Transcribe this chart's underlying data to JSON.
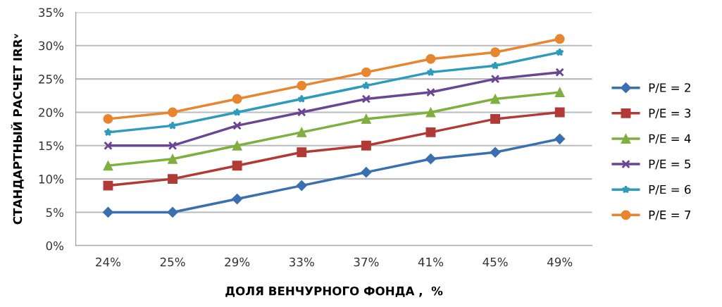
{
  "chart_data": {
    "type": "line",
    "xlabel": "ДОЛЯ ВЕНЧУРНОГО ФОНДА ,  %",
    "ylabel": "СТАНДАРТНЫЙ РАСЧЕТ IRRᵛ",
    "categories": [
      "24%",
      "25%",
      "29%",
      "33%",
      "37%",
      "41%",
      "45%",
      "49%"
    ],
    "series": [
      {
        "name": "P/E = 2",
        "color": "#3a6fb0",
        "marker": "diamond",
        "values": [
          5,
          5,
          7,
          9,
          11,
          13,
          14,
          16
        ]
      },
      {
        "name": "P/E = 3",
        "color": "#b23a36",
        "marker": "square",
        "values": [
          9,
          10,
          12,
          14,
          15,
          17,
          19,
          20
        ]
      },
      {
        "name": "P/E = 4",
        "color": "#7faf3f",
        "marker": "triangle",
        "values": [
          12,
          13,
          15,
          17,
          19,
          20,
          22,
          23
        ]
      },
      {
        "name": "P/E = 5",
        "color": "#6a4594",
        "marker": "cross",
        "values": [
          15,
          15,
          18,
          20,
          22,
          23,
          25,
          26
        ]
      },
      {
        "name": "P/E = 6",
        "color": "#2e9bbd",
        "marker": "star",
        "values": [
          17,
          18,
          20,
          22,
          24,
          26,
          27,
          29
        ]
      },
      {
        "name": "P/E = 7",
        "color": "#e8852f",
        "marker": "circle",
        "values": [
          19,
          20,
          22,
          24,
          26,
          28,
          29,
          31
        ]
      }
    ],
    "ylim": [
      0,
      35
    ],
    "yticks": [
      {
        "value": 0,
        "label": "0%"
      },
      {
        "value": 5,
        "label": "5%"
      },
      {
        "value": 10,
        "label": "10%"
      },
      {
        "value": 15,
        "label": "15%"
      },
      {
        "value": 20,
        "label": "20%"
      },
      {
        "value": 25,
        "label": "25%"
      },
      {
        "value": 30,
        "label": "30%"
      },
      {
        "value": 35,
        "label": "35%"
      }
    ],
    "grid": "y",
    "legend": "right",
    "line_style": "solid"
  }
}
